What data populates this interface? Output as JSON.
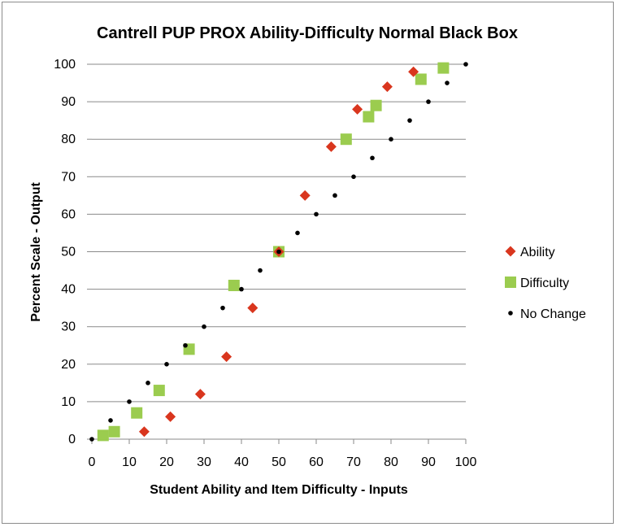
{
  "chart_data": {
    "type": "scatter",
    "title": "Cantrell PUP PROX Ability-Difficulty Normal Black Box",
    "xlabel": "Student Ability and Item Difficulty - Inputs",
    "ylabel": "Percent Scale - Output",
    "xlim": [
      0,
      100
    ],
    "ylim": [
      0,
      100
    ],
    "x_ticks": [
      "0",
      "10",
      "20",
      "30",
      "40",
      "50",
      "60",
      "70",
      "80",
      "90",
      "100"
    ],
    "y_ticks": [
      "0",
      "10",
      "20",
      "30",
      "40",
      "50",
      "60",
      "70",
      "80",
      "90",
      "100"
    ],
    "grid": "horizontal",
    "legend_position": "right",
    "series": [
      {
        "name": "Ability",
        "marker": "diamond",
        "color": "#d9361e",
        "points": [
          [
            14,
            2
          ],
          [
            21,
            6
          ],
          [
            29,
            12
          ],
          [
            36,
            22
          ],
          [
            43,
            35
          ],
          [
            50,
            50
          ],
          [
            57,
            65
          ],
          [
            64,
            78
          ],
          [
            71,
            88
          ],
          [
            79,
            94
          ],
          [
            86,
            98
          ]
        ]
      },
      {
        "name": "Difficulty",
        "marker": "square",
        "color": "#9bcc4f",
        "points": [
          [
            3,
            1
          ],
          [
            6,
            2
          ],
          [
            12,
            7
          ],
          [
            18,
            13
          ],
          [
            26,
            24
          ],
          [
            38,
            41
          ],
          [
            50,
            50
          ],
          [
            68,
            80
          ],
          [
            74,
            86
          ],
          [
            76,
            89
          ],
          [
            88,
            96
          ],
          [
            94,
            99
          ]
        ]
      },
      {
        "name": "No Change",
        "marker": "dot",
        "color": "#000000",
        "points": [
          [
            0,
            0
          ],
          [
            5,
            5
          ],
          [
            10,
            10
          ],
          [
            15,
            15
          ],
          [
            20,
            20
          ],
          [
            25,
            25
          ],
          [
            30,
            30
          ],
          [
            35,
            35
          ],
          [
            40,
            40
          ],
          [
            45,
            45
          ],
          [
            50,
            50
          ],
          [
            55,
            55
          ],
          [
            60,
            60
          ],
          [
            65,
            65
          ],
          [
            70,
            70
          ],
          [
            75,
            75
          ],
          [
            80,
            80
          ],
          [
            85,
            85
          ],
          [
            90,
            90
          ],
          [
            95,
            95
          ],
          [
            100,
            100
          ]
        ]
      }
    ]
  }
}
